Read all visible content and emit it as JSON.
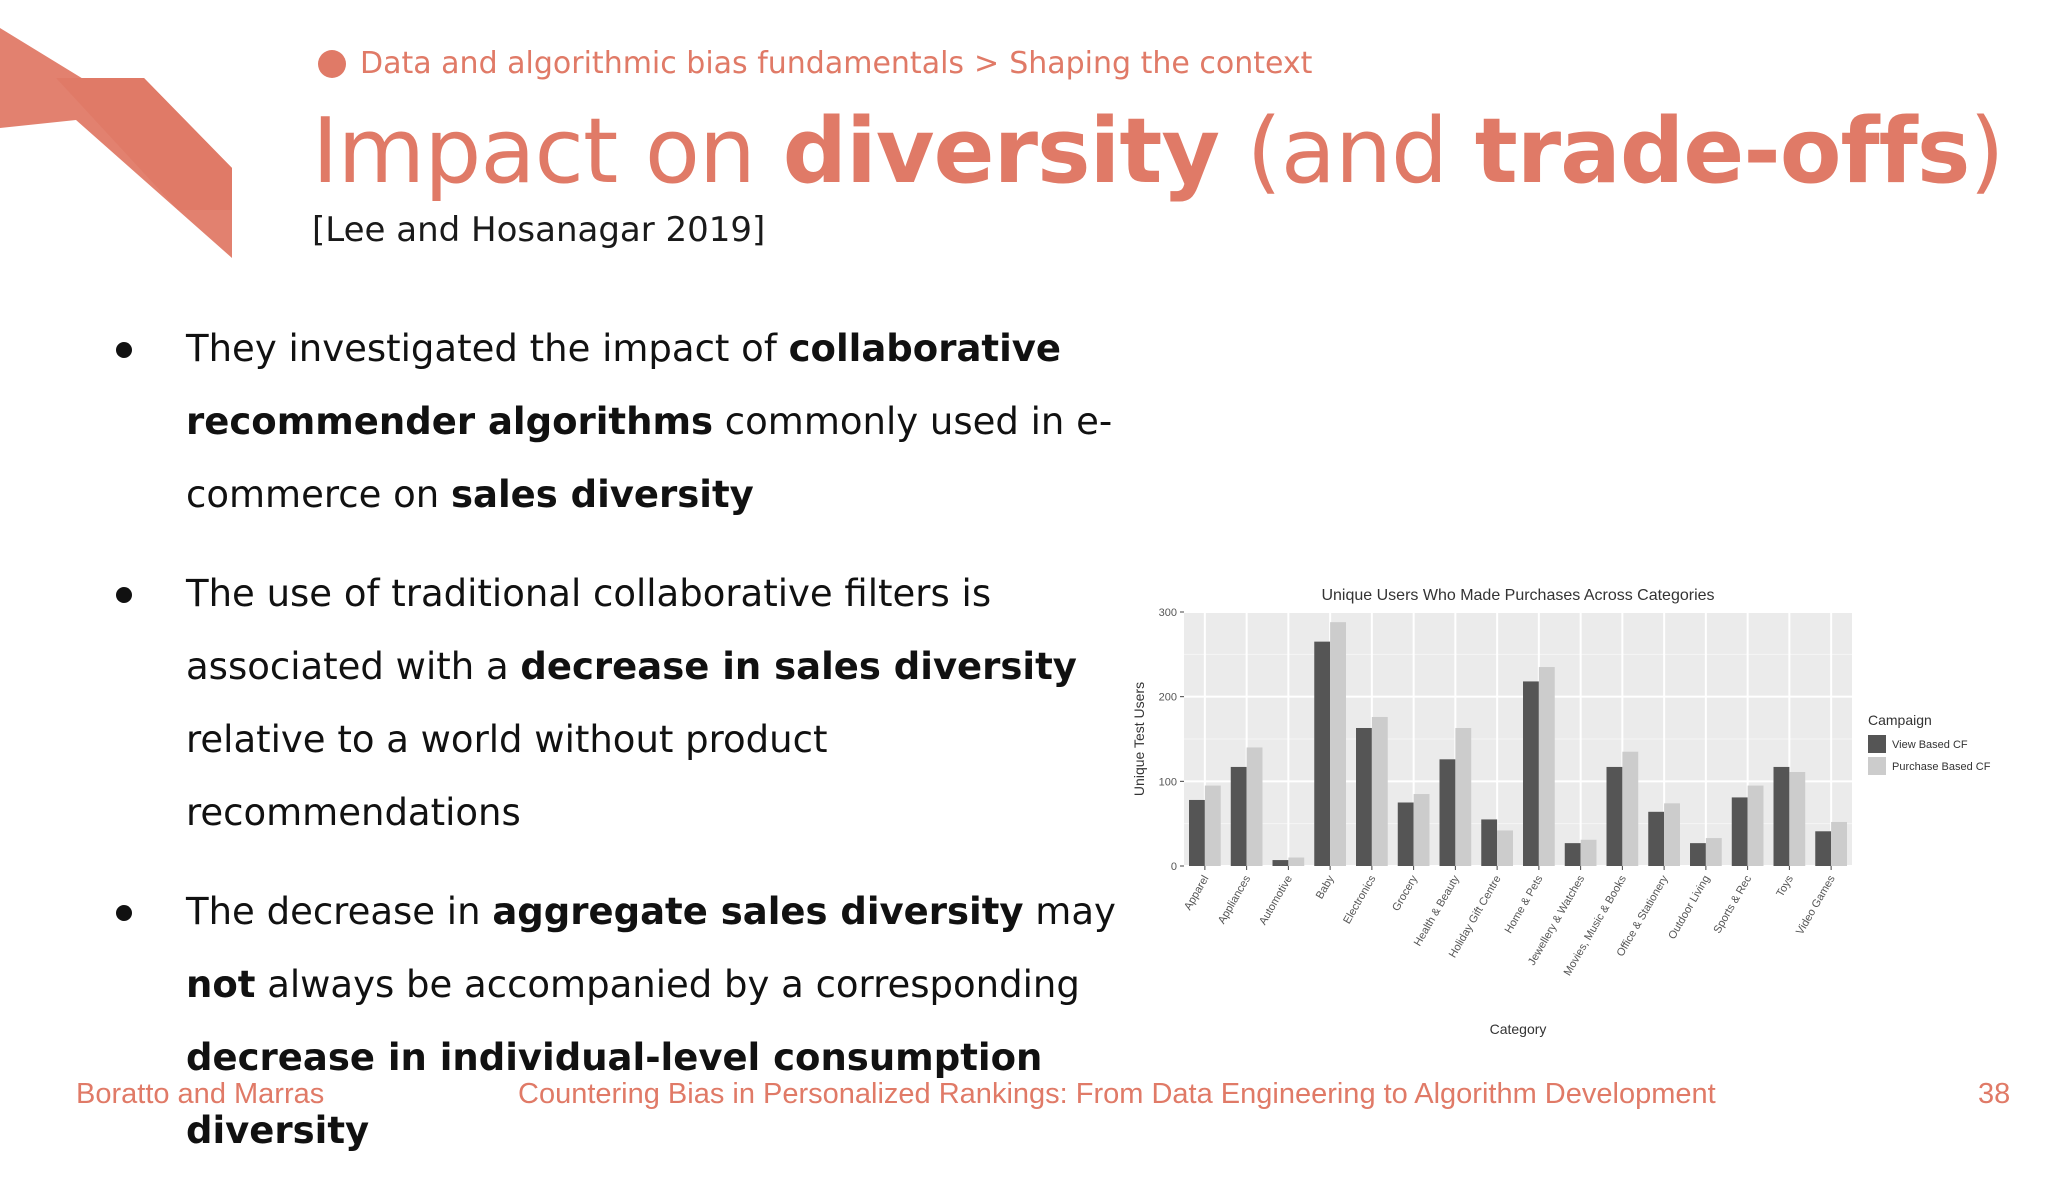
{
  "breadcrumb": {
    "section": "Data and algorithmic bias fundamentals",
    "separator": ">",
    "subsection": "Shaping the context"
  },
  "title": {
    "part1": "Impact on ",
    "bold1": "diversity",
    "part2": " (and ",
    "bold2": "trade-offs",
    "part3": ")"
  },
  "citation": "[Lee and Hosanagar 2019]",
  "bullets": [
    {
      "t1": "They investigated the impact of ",
      "b1": "collaborative recommender algorithms",
      "t2": " commonly used in e-commerce on ",
      "b2": "sales diversity"
    },
    {
      "t1": "The use of traditional collaborative filters is associated with a ",
      "b1": "decrease in sales diversity",
      "t2": " relative to a world without product recommendations"
    },
    {
      "t1": "The decrease in ",
      "b1": "aggregate sales diversity",
      "t2": " may ",
      "b2": "not",
      "t3": " always be accompanied by a corresponding ",
      "b3": "decrease in individual-level consumption diversity"
    }
  ],
  "chart_data": {
    "type": "bar",
    "title": "Unique Users Who Made Purchases Across Categories",
    "xlabel": "Category",
    "ylabel": "Unique Test Users",
    "ylim": [
      0,
      300
    ],
    "yticks": [
      0,
      100,
      200,
      300
    ],
    "grid": true,
    "legend": {
      "title": "Campaign",
      "position": "right"
    },
    "categories": [
      "Apparel",
      "Appliances",
      "Automotive",
      "Baby",
      "Electronics",
      "Grocery",
      "Health & Beauty",
      "Holiday Gift Centre",
      "Home & Pets",
      "Jewellery & Watches",
      "Movies, Music & Books",
      "Office & Stationery",
      "Outdoor Living",
      "Sports & Rec",
      "Toys",
      "Video Games"
    ],
    "series": [
      {
        "name": "View Based CF",
        "color": "#555555",
        "values": [
          78,
          117,
          7,
          265,
          163,
          75,
          126,
          55,
          218,
          27,
          117,
          64,
          27,
          81,
          117,
          41
        ]
      },
      {
        "name": "Purchase Based CF",
        "color": "#cccccc",
        "values": [
          95,
          140,
          10,
          288,
          176,
          85,
          163,
          42,
          235,
          31,
          135,
          74,
          33,
          95,
          111,
          52
        ]
      }
    ]
  },
  "footer": {
    "authors": "Boratto and Marras",
    "course": "Countering Bias in Personalized Rankings: From Data Engineering to Algorithm Development",
    "page": "38"
  }
}
